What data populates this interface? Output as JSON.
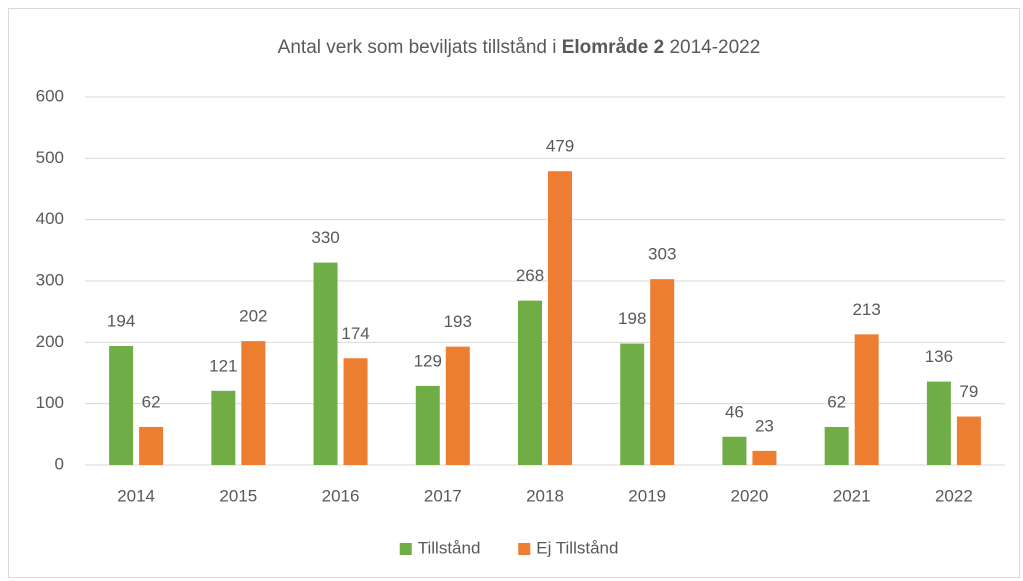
{
  "chart_data": {
    "type": "bar",
    "title": [
      {
        "text": "Antal verk som beviljats tillstånd i ",
        "bold": false
      },
      {
        "text": "Elområde 2",
        "bold": true
      },
      {
        "text": " 2014-2022",
        "bold": false
      }
    ],
    "categories": [
      "2014",
      "2015",
      "2016",
      "2017",
      "2018",
      "2019",
      "2020",
      "2021",
      "2022"
    ],
    "series": [
      {
        "name": "Tillstånd",
        "color": "#70ad47",
        "values": [
          194,
          121,
          330,
          129,
          268,
          198,
          46,
          62,
          136
        ]
      },
      {
        "name": "Ej Tillstånd",
        "color": "#ed7d31",
        "values": [
          62,
          202,
          174,
          193,
          479,
          303,
          23,
          213,
          79
        ]
      }
    ],
    "ylim": [
      0,
      600
    ],
    "yticks": [
      0,
      100,
      200,
      300,
      400,
      500,
      600
    ],
    "grid": true,
    "legend": "bottom"
  }
}
